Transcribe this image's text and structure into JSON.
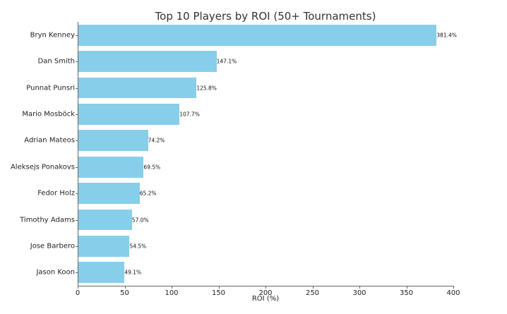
{
  "chart_data": {
    "type": "bar",
    "orientation": "horizontal",
    "title": "Top 10 Players by ROI (50+ Tournaments)",
    "xlabel": "ROI (%)",
    "ylabel": "",
    "xlim": [
      0,
      400
    ],
    "xticks": [
      0,
      50,
      100,
      150,
      200,
      250,
      300,
      350,
      400
    ],
    "grid": false,
    "legend": null,
    "bar_color": "#87ceeb",
    "categories": [
      "Bryn Kenney",
      "Dan Smith",
      "Punnat Punsri",
      "Mario Mosböck",
      "Adrian Mateos",
      "Aleksejs Ponakovs",
      "Fedor Holz",
      "Timothy Adams",
      "Jose Barbero",
      "Jason Koon"
    ],
    "values": [
      381.4,
      147.1,
      125.8,
      107.7,
      74.2,
      69.5,
      65.2,
      57.0,
      54.5,
      49.1
    ],
    "value_labels": [
      "381.4%",
      "147.1%",
      "125.8%",
      "107.7%",
      "74.2%",
      "69.5%",
      "65.2%",
      "57.0%",
      "54.5%",
      "49.1%"
    ]
  }
}
